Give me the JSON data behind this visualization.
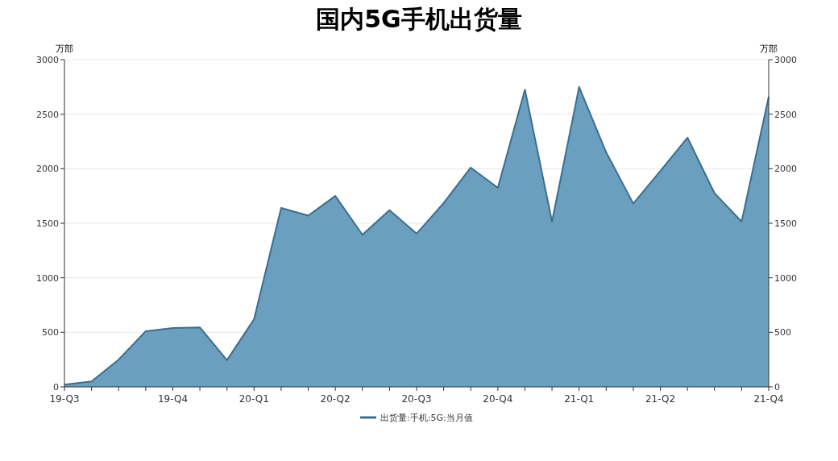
{
  "chart_data": {
    "type": "area",
    "title": "国内5G手机出货量",
    "ylabel": "万部",
    "y2label": "万部",
    "categories": [
      "19-Q3",
      null,
      null,
      null,
      "19-Q4",
      null,
      null,
      "20-Q1",
      null,
      null,
      "20-Q2",
      null,
      null,
      "20-Q3",
      null,
      null,
      "20-Q4",
      null,
      null,
      "21-Q1",
      null,
      null,
      "21-Q2",
      null,
      null,
      null,
      "21-Q4"
    ],
    "series": [
      {
        "name": "出货量:手机:5G:当月值",
        "color": "#6a9fbf",
        "values": [
          20,
          50,
          250,
          510,
          540,
          545,
          245,
          620,
          1640,
          1570,
          1750,
          1395,
          1620,
          1405,
          1685,
          2010,
          1825,
          2725,
          1515,
          2750,
          2150,
          1680,
          1980,
          2285,
          1775,
          1515,
          2660
        ]
      }
    ],
    "ylim": [
      0,
      3000
    ],
    "yticks": [
      0,
      500,
      1000,
      1500,
      2000,
      2500,
      3000
    ],
    "y2lim": [
      0,
      3000
    ],
    "y2ticks": [
      0,
      500,
      1000,
      1500,
      2000,
      2500,
      3000
    ],
    "grid": "y",
    "legend": "bottom"
  }
}
